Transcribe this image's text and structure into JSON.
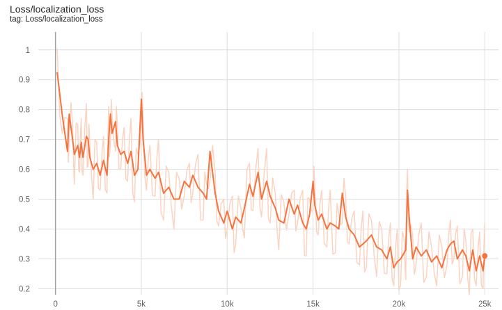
{
  "header": {
    "title": "Loss/localization_loss",
    "tag": "tag: Loss/localization_loss"
  },
  "colors": {
    "series": "#f4733f",
    "series_raw": "#fbd3c1",
    "grid": "#dcdcdc",
    "zero_axis": "#9e9e9e"
  },
  "chart_data": {
    "type": "line",
    "title": "Loss/localization_loss",
    "xlabel": "",
    "ylabel": "",
    "xlim": [
      -1000,
      25800
    ],
    "ylim": [
      0.18,
      1.06
    ],
    "grid": true,
    "legend": "none",
    "xticks": [
      0,
      5000,
      10000,
      15000,
      20000,
      25000
    ],
    "xtick_labels": [
      "0",
      "5k",
      "10k",
      "15k",
      "20k",
      "25k"
    ],
    "yticks": [
      0.2,
      0.3,
      0.4,
      0.5,
      0.6,
      0.7,
      0.8,
      0.9,
      1.0
    ],
    "ytick_labels": [
      "0.2",
      "0.3",
      "0.4",
      "0.5",
      "0.6",
      "0.7",
      "0.8",
      "0.9",
      "1"
    ],
    "series": [
      {
        "x": [
          100,
          400,
          700,
          800,
          1000,
          1100,
          1300,
          1400,
          1500,
          1600,
          1800,
          1900,
          2000,
          2200,
          2400,
          2600,
          2800,
          3000,
          3100,
          3200,
          3300,
          3500,
          3600,
          3800,
          4000,
          4200,
          4400,
          4600,
          4800,
          5000,
          5100,
          5300,
          5500,
          5800,
          6000,
          6300,
          6600,
          6900,
          7200,
          7500,
          7800,
          8000,
          8300,
          8600,
          8800,
          9000,
          9300,
          9500,
          9800,
          10000,
          10300,
          10500,
          10800,
          11000,
          11300,
          11500,
          11800,
          12000,
          12300,
          12500,
          12800,
          13000,
          13300,
          13600,
          13900,
          14100,
          14400,
          14600,
          14800,
          15000,
          15100,
          15300,
          15500,
          15800,
          16000,
          16300,
          16500,
          16700,
          16900,
          17100,
          17400,
          17700,
          17900,
          18100,
          18400,
          18700,
          19000,
          19300,
          19500,
          19700,
          19900,
          20100,
          20300,
          20400,
          20500,
          20600,
          20800,
          21000,
          21300,
          21600,
          21900,
          22200,
          22500,
          22800,
          23000,
          23200,
          23400,
          23700,
          23900,
          24100,
          24300,
          24500,
          24700,
          24900,
          25000
        ],
        "y": [
          0.925,
          0.78,
          0.66,
          0.785,
          0.7,
          0.65,
          0.68,
          0.64,
          0.69,
          0.64,
          0.71,
          0.7,
          0.64,
          0.6,
          0.62,
          0.58,
          0.63,
          0.58,
          0.7,
          0.785,
          0.72,
          0.76,
          0.68,
          0.65,
          0.66,
          0.62,
          0.66,
          0.58,
          0.6,
          0.835,
          0.7,
          0.58,
          0.6,
          0.57,
          0.59,
          0.52,
          0.54,
          0.5,
          0.5,
          0.56,
          0.54,
          0.58,
          0.54,
          0.52,
          0.5,
          0.66,
          0.52,
          0.46,
          0.42,
          0.46,
          0.4,
          0.44,
          0.42,
          0.47,
          0.55,
          0.51,
          0.59,
          0.5,
          0.56,
          0.51,
          0.47,
          0.43,
          0.42,
          0.5,
          0.45,
          0.48,
          0.42,
          0.4,
          0.45,
          0.56,
          0.48,
          0.43,
          0.45,
          0.4,
          0.42,
          0.41,
          0.4,
          0.52,
          0.44,
          0.4,
          0.38,
          0.34,
          0.35,
          0.36,
          0.38,
          0.34,
          0.33,
          0.3,
          0.34,
          0.27,
          0.29,
          0.3,
          0.32,
          0.33,
          0.53,
          0.44,
          0.3,
          0.34,
          0.31,
          0.33,
          0.29,
          0.31,
          0.27,
          0.33,
          0.35,
          0.36,
          0.3,
          0.33,
          0.31,
          0.26,
          0.33,
          0.26,
          0.31,
          0.26,
          0.31
        ]
      }
    ]
  }
}
